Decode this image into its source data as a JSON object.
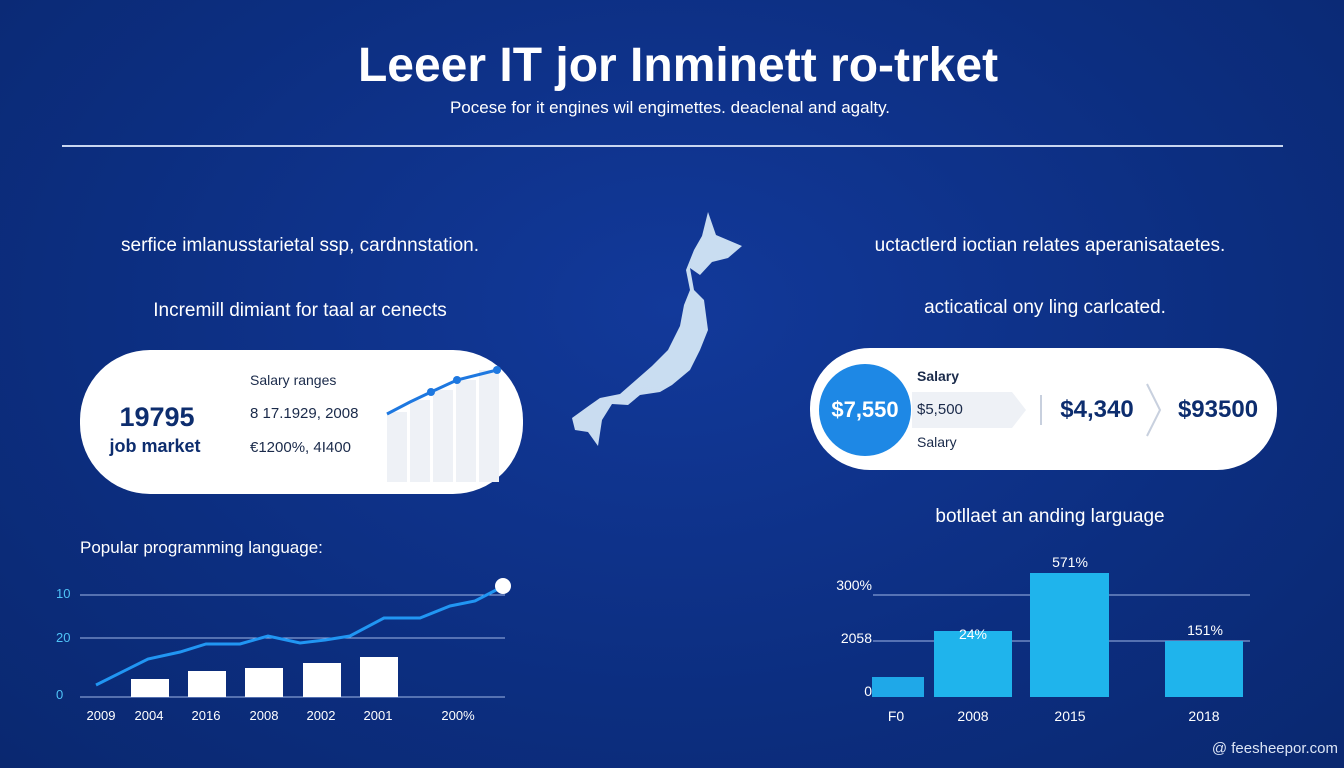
{
  "header": {
    "title": "Leeer IT jor Inminett ro-trket",
    "subtitle": "Pocese for it engines wil engimettes. deaclenal and agalty."
  },
  "left_panel": {
    "heading": "serfice imlanusstarietal ssp, cardnnstation.",
    "subheading": "Incremill dimiant for taal ar cenects",
    "card": {
      "big_number": "19795",
      "big_label": "job market",
      "salary_title": "Salary ranges",
      "lines": [
        "8 17.1929, 2008",
        "€1200%, 4I400"
      ]
    }
  },
  "right_panel": {
    "heading": "uctactlerd ioctian relates aperanisataetes.",
    "subheading": "acticatical ony ling carlcated.",
    "card": {
      "circle_value": "$7,550",
      "tag_title": "Salary",
      "tag_value": "$5,500",
      "tag_caption": "Salary",
      "value_1": "$4,340",
      "value_2": "$93500"
    }
  },
  "left_chart": {
    "title": "Popular programming language:",
    "y_labels": [
      "10",
      "20",
      "0"
    ],
    "x_labels": [
      "2009",
      "2004",
      "2016",
      "2008",
      "2002",
      "2001",
      "200%"
    ]
  },
  "right_chart": {
    "title": "botllaet an anding larguage",
    "y_labels": [
      "300%",
      "2058",
      "0"
    ],
    "x_labels": [
      "F0",
      "2008",
      "2015",
      "2018"
    ],
    "bar_labels": [
      "24%",
      "571%",
      "151%"
    ]
  },
  "footer": {
    "credit": "@ feesheepor.com"
  }
}
